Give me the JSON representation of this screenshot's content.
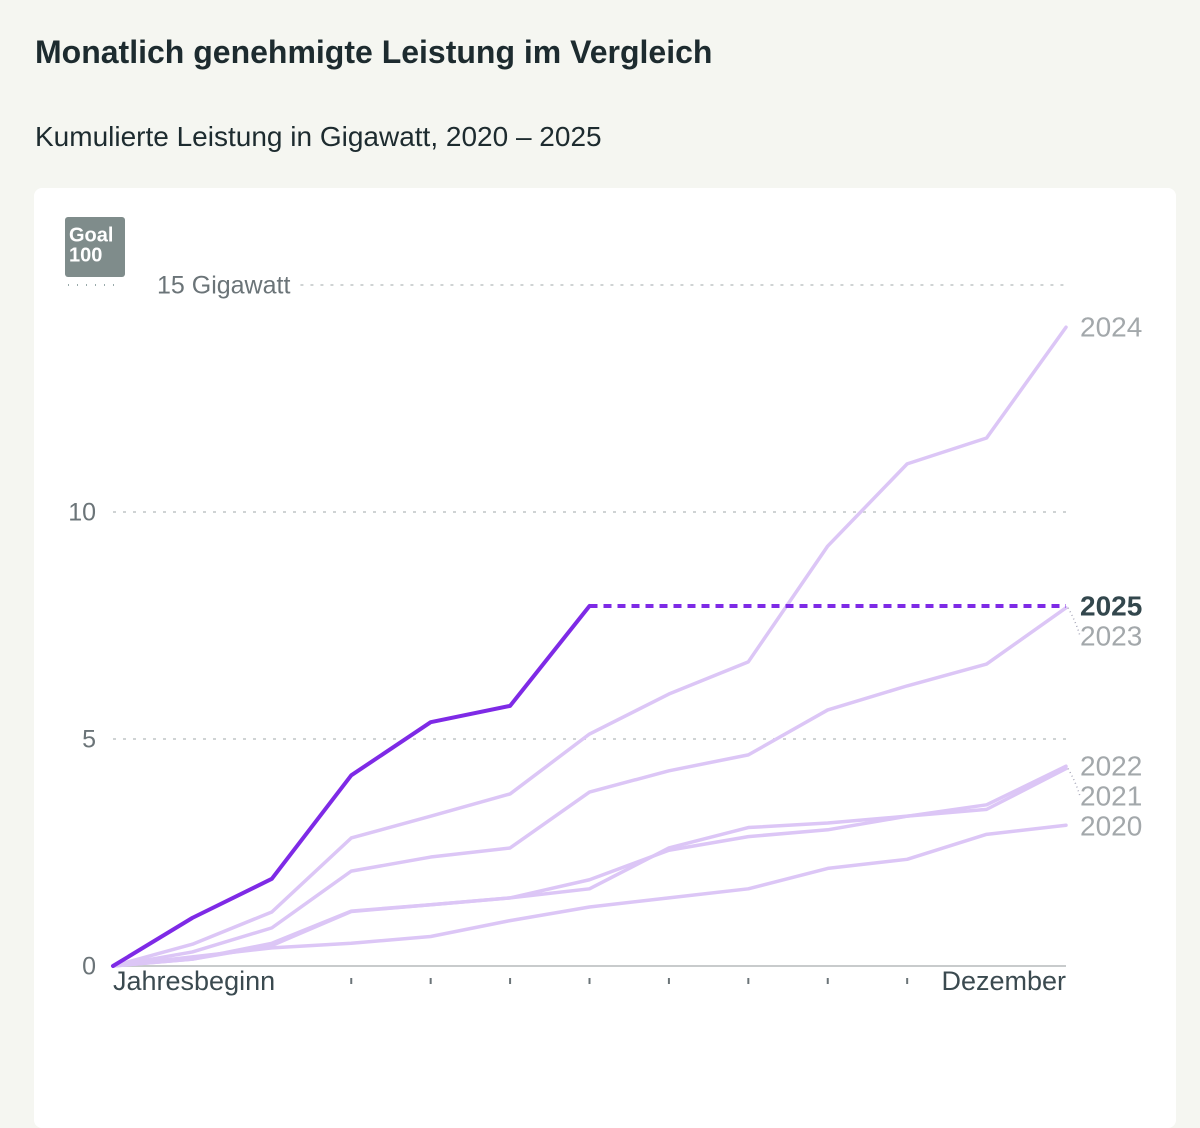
{
  "chart_data": {
    "type": "line",
    "title": "Monatlich genehmigte Leistung im Vergleich",
    "subtitle": "Kumulierte Leistung in Gigawatt, 2020 – 2025",
    "logo": [
      "Goal",
      "100"
    ],
    "categories": [
      "Jahresbeginn",
      null,
      null,
      null,
      null,
      null,
      null,
      null,
      null,
      null,
      null,
      null,
      "Dezember"
    ],
    "ylim": [
      0,
      15
    ],
    "yticks": [
      0,
      5,
      10,
      {
        "value": 15,
        "label": "15 Gigawatt"
      }
    ],
    "grid": true,
    "series": [
      {
        "name": "2020",
        "color": "#dcc6f6",
        "values": [
          0,
          0.2,
          0.4,
          0.5,
          0.65,
          1.0,
          1.3,
          1.5,
          1.7,
          2.15,
          2.35,
          2.9,
          3.1
        ]
      },
      {
        "name": "2022",
        "color": "#dcc6f6",
        "values": [
          0,
          0.15,
          0.45,
          1.2,
          1.35,
          1.5,
          1.9,
          2.55,
          2.85,
          3.0,
          3.3,
          3.55,
          4.4
        ]
      },
      {
        "name": "2021",
        "color": "#dcc6f6",
        "values": [
          0,
          0.15,
          0.5,
          1.21,
          1.35,
          1.5,
          1.7,
          2.6,
          3.05,
          3.15,
          3.3,
          3.45,
          4.35
        ]
      },
      {
        "name": "2023",
        "color": "#dcc6f6",
        "values": [
          0,
          0.31,
          0.84,
          2.09,
          2.4,
          2.6,
          3.83,
          4.3,
          4.65,
          5.64,
          6.17,
          6.65,
          7.89
        ]
      },
      {
        "name": "2024",
        "color": "#dcc6f6",
        "values": [
          0,
          0.48,
          1.19,
          2.82,
          3.3,
          3.79,
          5.11,
          5.99,
          6.7,
          9.25,
          11.06,
          11.63,
          14.07
        ]
      },
      {
        "name": "2025",
        "color": "#7e2ae6",
        "highlight": true,
        "values": [
          0,
          1.06,
          1.92,
          4.2,
          5.37,
          5.73,
          7.93,
          null,
          null,
          null,
          null,
          null,
          null
        ]
      }
    ]
  }
}
